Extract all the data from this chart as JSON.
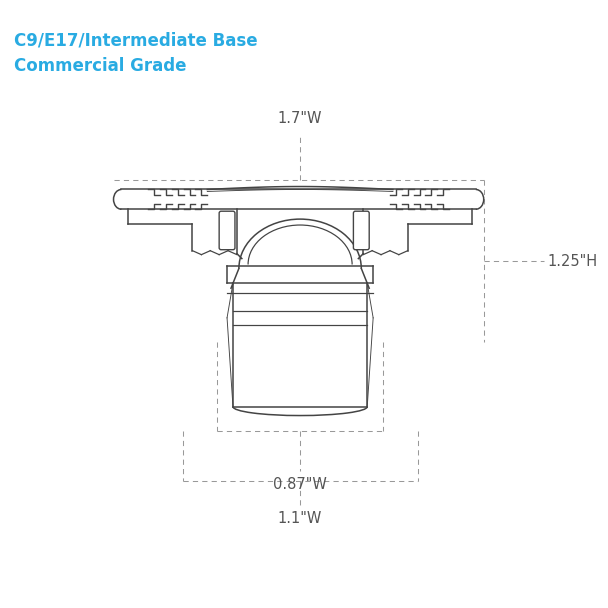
{
  "title_line1": "C9/E17/Intermediate Base",
  "title_line2": "Commercial Grade",
  "title_color": "#29abe2",
  "title_fontsize": 12,
  "bg_color": "#ffffff",
  "dim_color": "#555555",
  "line_color": "#444444",
  "dashed_color": "#999999",
  "dim_17w": "1.7\"W",
  "dim_125h": "1.25\"H",
  "dim_087w": "0.87\"W",
  "dim_11w": "1.1\"W",
  "fig_width": 6.08,
  "fig_height": 6.08
}
